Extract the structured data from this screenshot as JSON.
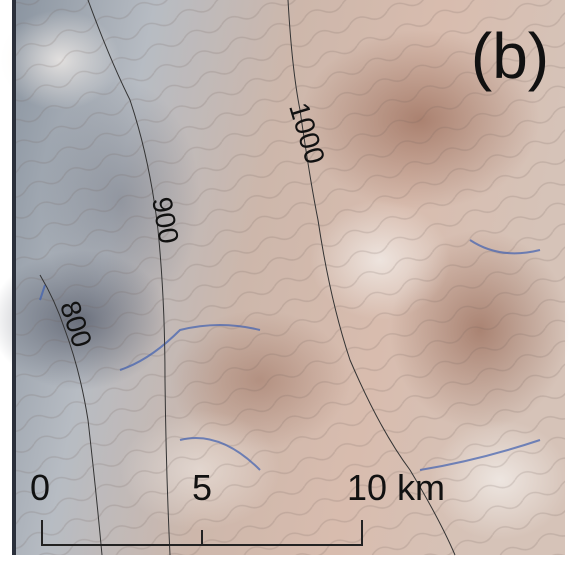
{
  "panel_label": "(b)",
  "contour_labels": [
    "800",
    "900",
    "1000"
  ],
  "scale_bar": {
    "labels": [
      "0",
      "5",
      "10 km"
    ]
  }
}
